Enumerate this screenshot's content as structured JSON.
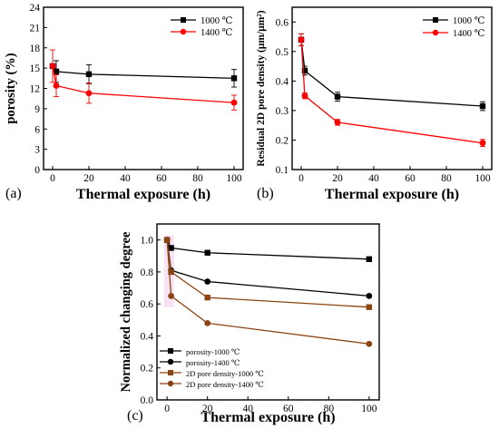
{
  "chart_data": [
    {
      "panel": "(a)",
      "type": "line",
      "xlabel": "Thermal exposure (h)",
      "ylabel": "porosity (%)",
      "xlim": [
        -5,
        105
      ],
      "ylim": [
        0,
        24
      ],
      "xticks": [
        0,
        20,
        40,
        60,
        80,
        100
      ],
      "yticks": [
        0,
        3,
        6,
        9,
        12,
        15,
        18,
        21,
        24
      ],
      "legend_position": "top-right",
      "series": [
        {
          "name": "1000 ℃",
          "color": "#000000",
          "marker": "square",
          "x": [
            0,
            2,
            20,
            100
          ],
          "y": [
            15.3,
            14.5,
            14.1,
            13.5
          ],
          "err": [
            0,
            1.6,
            1.4,
            1.3
          ]
        },
        {
          "name": "1400 ℃",
          "color": "#ff0000",
          "marker": "circle",
          "x": [
            0,
            2,
            20,
            100
          ],
          "y": [
            15.3,
            12.4,
            11.3,
            9.9
          ],
          "err": [
            2.4,
            1.6,
            1.5,
            1.1
          ]
        }
      ]
    },
    {
      "panel": "(b)",
      "type": "line",
      "xlabel": "Thermal exposure (h)",
      "ylabel": "Residual 2D pore density (μm/μm²)",
      "xlim": [
        -5,
        105
      ],
      "ylim": [
        0.1,
        0.65
      ],
      "xticks": [
        0,
        20,
        40,
        60,
        80,
        100
      ],
      "yticks": [
        0.1,
        0.2,
        0.3,
        0.4,
        0.5,
        0.6
      ],
      "legend_position": "top-right",
      "series": [
        {
          "name": "1000 ℃",
          "color": "#000000",
          "marker": "square",
          "x": [
            0,
            2,
            20,
            100
          ],
          "y": [
            0.54,
            0.435,
            0.347,
            0.315
          ],
          "err": [
            0.02,
            0.015,
            0.015,
            0.015
          ]
        },
        {
          "name": "1400 ℃",
          "color": "#ff0000",
          "marker": "circle",
          "x": [
            0,
            2,
            20,
            100
          ],
          "y": [
            0.54,
            0.35,
            0.26,
            0.19
          ],
          "err": [
            0.02,
            0.01,
            0.01,
            0.012
          ]
        }
      ]
    },
    {
      "panel": "(c)",
      "type": "line",
      "xlabel": "Thermal exposure (h)",
      "ylabel": "Normalized changing degree",
      "xlim": [
        -5,
        105
      ],
      "ylim": [
        0.0,
        1.1
      ],
      "xticks": [
        0,
        20,
        40,
        60,
        80,
        100
      ],
      "yticks": [
        0.0,
        0.2,
        0.4,
        0.6,
        0.8,
        1.0
      ],
      "legend_position": "bottom-left",
      "series": [
        {
          "name": "porosity-1000 ℃",
          "color": "#000000",
          "marker": "square",
          "x": [
            0,
            2,
            20,
            100
          ],
          "y": [
            1.0,
            0.95,
            0.92,
            0.88
          ]
        },
        {
          "name": "porosity-1400 ℃",
          "color": "#000000",
          "marker": "circle",
          "x": [
            0,
            2,
            20,
            100
          ],
          "y": [
            1.0,
            0.81,
            0.74,
            0.65
          ]
        },
        {
          "name": "2D pore density-1000 ℃",
          "color": "#8b4513",
          "marker": "square",
          "x": [
            0,
            2,
            20,
            100
          ],
          "y": [
            1.0,
            0.8,
            0.64,
            0.58
          ]
        },
        {
          "name": "2D pore density-1400 ℃",
          "color": "#8b4513",
          "marker": "circle",
          "x": [
            0,
            2,
            20,
            100
          ],
          "y": [
            1.0,
            0.65,
            0.48,
            0.35
          ]
        }
      ]
    }
  ]
}
